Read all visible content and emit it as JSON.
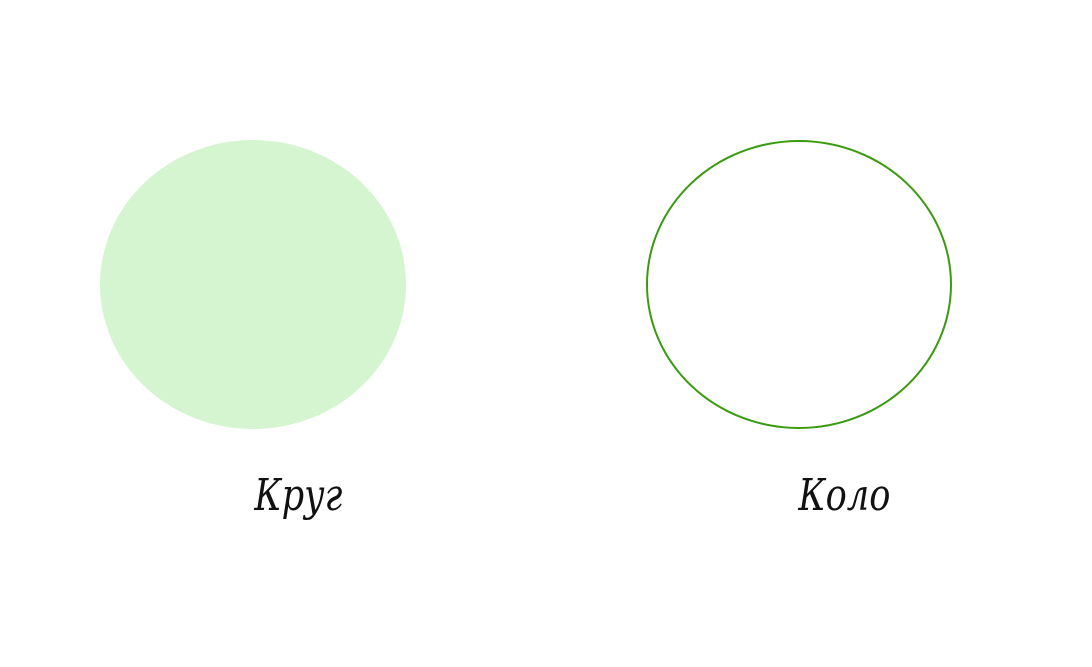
{
  "figures": [
    {
      "label": "Круг",
      "style": "filled",
      "fill_color": "#d4f5cf"
    },
    {
      "label": "Коло",
      "style": "outline",
      "stroke_color": "#3a9a10"
    }
  ]
}
